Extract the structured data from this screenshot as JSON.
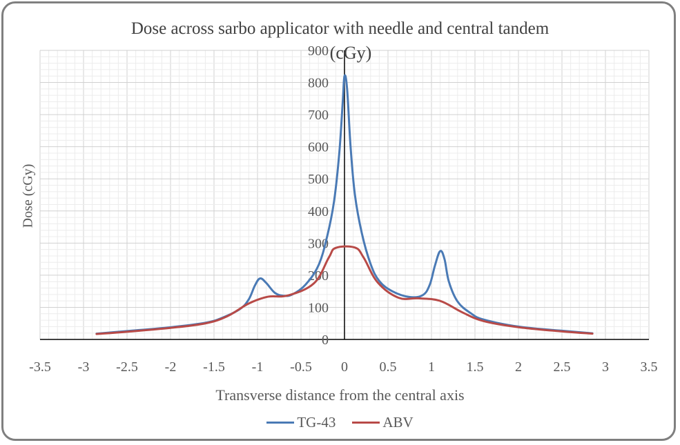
{
  "chart_data": {
    "type": "line",
    "title": "Dose across sarbo applicator with needle and central tandem",
    "xlabel": "Transverse distance from the central axis",
    "ylabel": "Dose (cGy)",
    "y_axis_unit_label": "(cGy)",
    "xlim": [
      -3.5,
      3.5
    ],
    "ylim": [
      0,
      900
    ],
    "x_ticks": [
      "-3.5",
      "-3",
      "-2.5",
      "-2",
      "-1.5",
      "-1",
      "-0.5",
      "0",
      "0.5",
      "1",
      "1.5",
      "2",
      "2.5",
      "3",
      "3.5"
    ],
    "y_ticks": [
      "0",
      "100",
      "200",
      "300",
      "400",
      "500",
      "600",
      "700",
      "800",
      "900"
    ],
    "grid": true,
    "legend_position": "bottom",
    "series": [
      {
        "name": "TG-43",
        "color": "#4a7ab5",
        "points": [
          [
            -2.85,
            18
          ],
          [
            -2.5,
            26
          ],
          [
            -2.0,
            38
          ],
          [
            -1.6,
            52
          ],
          [
            -1.4,
            68
          ],
          [
            -1.2,
            95
          ],
          [
            -1.1,
            125
          ],
          [
            -1.03,
            168
          ],
          [
            -0.97,
            190
          ],
          [
            -0.9,
            176
          ],
          [
            -0.8,
            145
          ],
          [
            -0.7,
            136
          ],
          [
            -0.6,
            140
          ],
          [
            -0.45,
            170
          ],
          [
            -0.3,
            230
          ],
          [
            -0.2,
            320
          ],
          [
            -0.12,
            430
          ],
          [
            -0.06,
            580
          ],
          [
            -0.02,
            740
          ],
          [
            0.0,
            820
          ],
          [
            0.03,
            780
          ],
          [
            0.07,
            600
          ],
          [
            0.12,
            450
          ],
          [
            0.2,
            330
          ],
          [
            0.3,
            235
          ],
          [
            0.4,
            182
          ],
          [
            0.55,
            150
          ],
          [
            0.75,
            132
          ],
          [
            0.9,
            138
          ],
          [
            0.98,
            170
          ],
          [
            1.04,
            230
          ],
          [
            1.1,
            275
          ],
          [
            1.15,
            250
          ],
          [
            1.2,
            180
          ],
          [
            1.3,
            118
          ],
          [
            1.45,
            82
          ],
          [
            1.6,
            62
          ],
          [
            2.0,
            40
          ],
          [
            2.5,
            27
          ],
          [
            2.85,
            19
          ]
        ]
      },
      {
        "name": "ABV",
        "color": "#b84a47",
        "points": [
          [
            -2.85,
            17
          ],
          [
            -2.5,
            24
          ],
          [
            -2.0,
            36
          ],
          [
            -1.6,
            50
          ],
          [
            -1.35,
            72
          ],
          [
            -1.1,
            112
          ],
          [
            -0.88,
            133
          ],
          [
            -0.65,
            137
          ],
          [
            -0.35,
            175
          ],
          [
            -0.18,
            255
          ],
          [
            -0.1,
            285
          ],
          [
            0.12,
            286
          ],
          [
            0.22,
            255
          ],
          [
            0.38,
            178
          ],
          [
            0.62,
            130
          ],
          [
            0.85,
            128
          ],
          [
            1.1,
            120
          ],
          [
            1.35,
            85
          ],
          [
            1.6,
            57
          ],
          [
            2.0,
            38
          ],
          [
            2.5,
            25
          ],
          [
            2.85,
            18
          ]
        ]
      }
    ]
  }
}
